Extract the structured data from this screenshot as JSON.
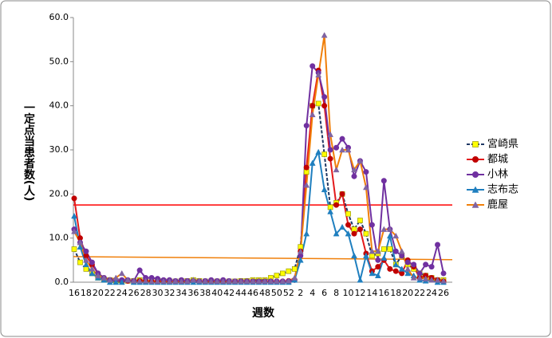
{
  "chart_data": {
    "type": "line",
    "y_label": "一定点当患者数(人)",
    "x_label": "週数",
    "categories": [
      "16",
      null,
      "18",
      null,
      "20",
      null,
      "22",
      null,
      "24",
      null,
      "26",
      null,
      "28",
      null,
      "30",
      null,
      "32",
      null,
      "34",
      null,
      "36",
      null,
      "38",
      null,
      "40",
      null,
      "42",
      null,
      "44",
      null,
      "46",
      null,
      "48",
      null,
      "50",
      null,
      "52",
      null,
      "2",
      null,
      "4",
      null,
      "6",
      null,
      "8",
      null,
      "10",
      null,
      "12",
      null,
      "14",
      null,
      "16",
      null,
      "18",
      null,
      "20",
      null,
      "22",
      null,
      "24",
      null,
      "26"
    ],
    "ylim": [
      0,
      60
    ],
    "yticks": [
      {
        "value": 0,
        "label": "0.0"
      },
      {
        "value": 10,
        "label": "10.0"
      },
      {
        "value": 20,
        "label": "20.0"
      },
      {
        "value": 30,
        "label": "30.0"
      },
      {
        "value": 40,
        "label": "40.0"
      },
      {
        "value": 50,
        "label": "50.0"
      },
      {
        "value": 60,
        "label": "60.0"
      }
    ],
    "legend": "right",
    "series": [
      {
        "name": "宮崎県",
        "color": "#1f3864",
        "dash": true,
        "marker": "square",
        "marker_color": "#ffff00",
        "values": [
          7.5,
          4.5,
          3,
          2,
          1,
          0.5,
          0.5,
          0.3,
          0.3,
          0.3,
          0.3,
          0.5,
          0.3,
          0.3,
          0.3,
          0.3,
          0.2,
          0.2,
          0.3,
          0.3,
          0.5,
          0.3,
          0.2,
          0.2,
          0.2,
          0.2,
          0.2,
          0.2,
          0.3,
          0.3,
          0.5,
          0.5,
          0.5,
          1,
          1.5,
          2,
          2.5,
          3,
          8,
          25,
          40,
          40.5,
          29,
          17,
          18,
          20,
          15.5,
          12,
          14,
          11,
          6,
          6.5,
          7.5,
          7.5,
          4,
          6,
          4,
          3,
          2,
          1.5,
          1,
          0.5,
          0.5
        ]
      },
      {
        "name": "都城",
        "color": "#e31a1c",
        "dash": false,
        "marker": "circle",
        "marker_color": "#c00000",
        "values": [
          19,
          10,
          6,
          4,
          2,
          1,
          0.5,
          0.5,
          0.3,
          0.3,
          0.3,
          0.3,
          0.3,
          0.2,
          0.2,
          0.2,
          0.2,
          0.2,
          0.2,
          0.2,
          0.2,
          0.2,
          0.2,
          0.2,
          0.2,
          0.2,
          0.2,
          0.2,
          0.2,
          0.2,
          0.2,
          0.2,
          0.2,
          0.2,
          0.2,
          0.2,
          0.3,
          0.5,
          7,
          26,
          40,
          48,
          40,
          28,
          17.5,
          20,
          13,
          11,
          12,
          6.5,
          2.5,
          3.5,
          5,
          3,
          2.5,
          2,
          5,
          3.5,
          1,
          1.5,
          1,
          0.5,
          0.2
        ]
      },
      {
        "name": "小林",
        "color": "#7030a0",
        "dash": false,
        "marker": "circle",
        "marker_color": "#7030a0",
        "values": [
          12,
          9,
          7,
          4.5,
          2,
          1,
          0.5,
          0.5,
          0.5,
          0.5,
          0.3,
          2.7,
          1,
          1,
          0.8,
          0.5,
          0.5,
          0.3,
          0.5,
          0.3,
          0.3,
          0.2,
          0.3,
          0.5,
          0.3,
          0.5,
          0.3,
          0.2,
          0.2,
          0.2,
          0.2,
          0.2,
          0.2,
          0.2,
          0.2,
          0.2,
          0.2,
          0.5,
          6,
          35.5,
          49,
          47.5,
          42,
          30,
          30.5,
          32.5,
          30.5,
          24,
          27.5,
          25,
          13,
          5,
          23,
          12,
          7,
          6,
          4.5,
          4,
          2,
          4,
          3.5,
          8.5,
          2
        ]
      },
      {
        "name": "志布志",
        "color": "#1f7fbf",
        "dash": false,
        "marker": "triangle",
        "marker_color": "#1f7fbf",
        "values": [
          15,
          8,
          4,
          2,
          1,
          0.5,
          0,
          0,
          0,
          0.5,
          0,
          0,
          0,
          0,
          0,
          0,
          0,
          0,
          0,
          0,
          0,
          0,
          0,
          0,
          0,
          0,
          0,
          0,
          0,
          0,
          0,
          0,
          0,
          0,
          0,
          0,
          0,
          0.5,
          5,
          11,
          27,
          29.5,
          21,
          16,
          11,
          12.5,
          11,
          6,
          0.5,
          6,
          2,
          1.5,
          5.5,
          10.5,
          4,
          3,
          2,
          1.5,
          0.5,
          0.3,
          0.5,
          0,
          0
        ]
      },
      {
        "name": "鹿屋",
        "color": "#f07f09",
        "dash": false,
        "marker": "triangle",
        "marker_color": "#8064a2",
        "values": [
          11.5,
          9,
          5,
          3,
          1.5,
          1,
          0.5,
          1,
          2,
          0.5,
          0.3,
          0.3,
          0.3,
          0.2,
          0.2,
          0.2,
          0.2,
          0.2,
          0.2,
          0.2,
          0.5,
          0.3,
          0.2,
          0.2,
          0.2,
          0.2,
          0.2,
          0.2,
          0.2,
          0.2,
          0.2,
          0.2,
          0.2,
          0.2,
          0.2,
          0.2,
          0.3,
          1,
          7,
          22,
          38,
          47,
          56,
          33.5,
          25.5,
          30,
          30,
          25.5,
          27.5,
          21.5,
          7,
          7,
          12,
          12,
          10.5,
          7,
          3,
          1,
          1,
          0.8,
          0.5,
          0.5,
          0.3
        ]
      }
    ],
    "reference_lines": [
      {
        "color": "#ff0000",
        "values": [
          17.5,
          17.5
        ]
      },
      {
        "color": "#f07f09",
        "values": [
          5.8,
          5.1
        ]
      }
    ]
  }
}
